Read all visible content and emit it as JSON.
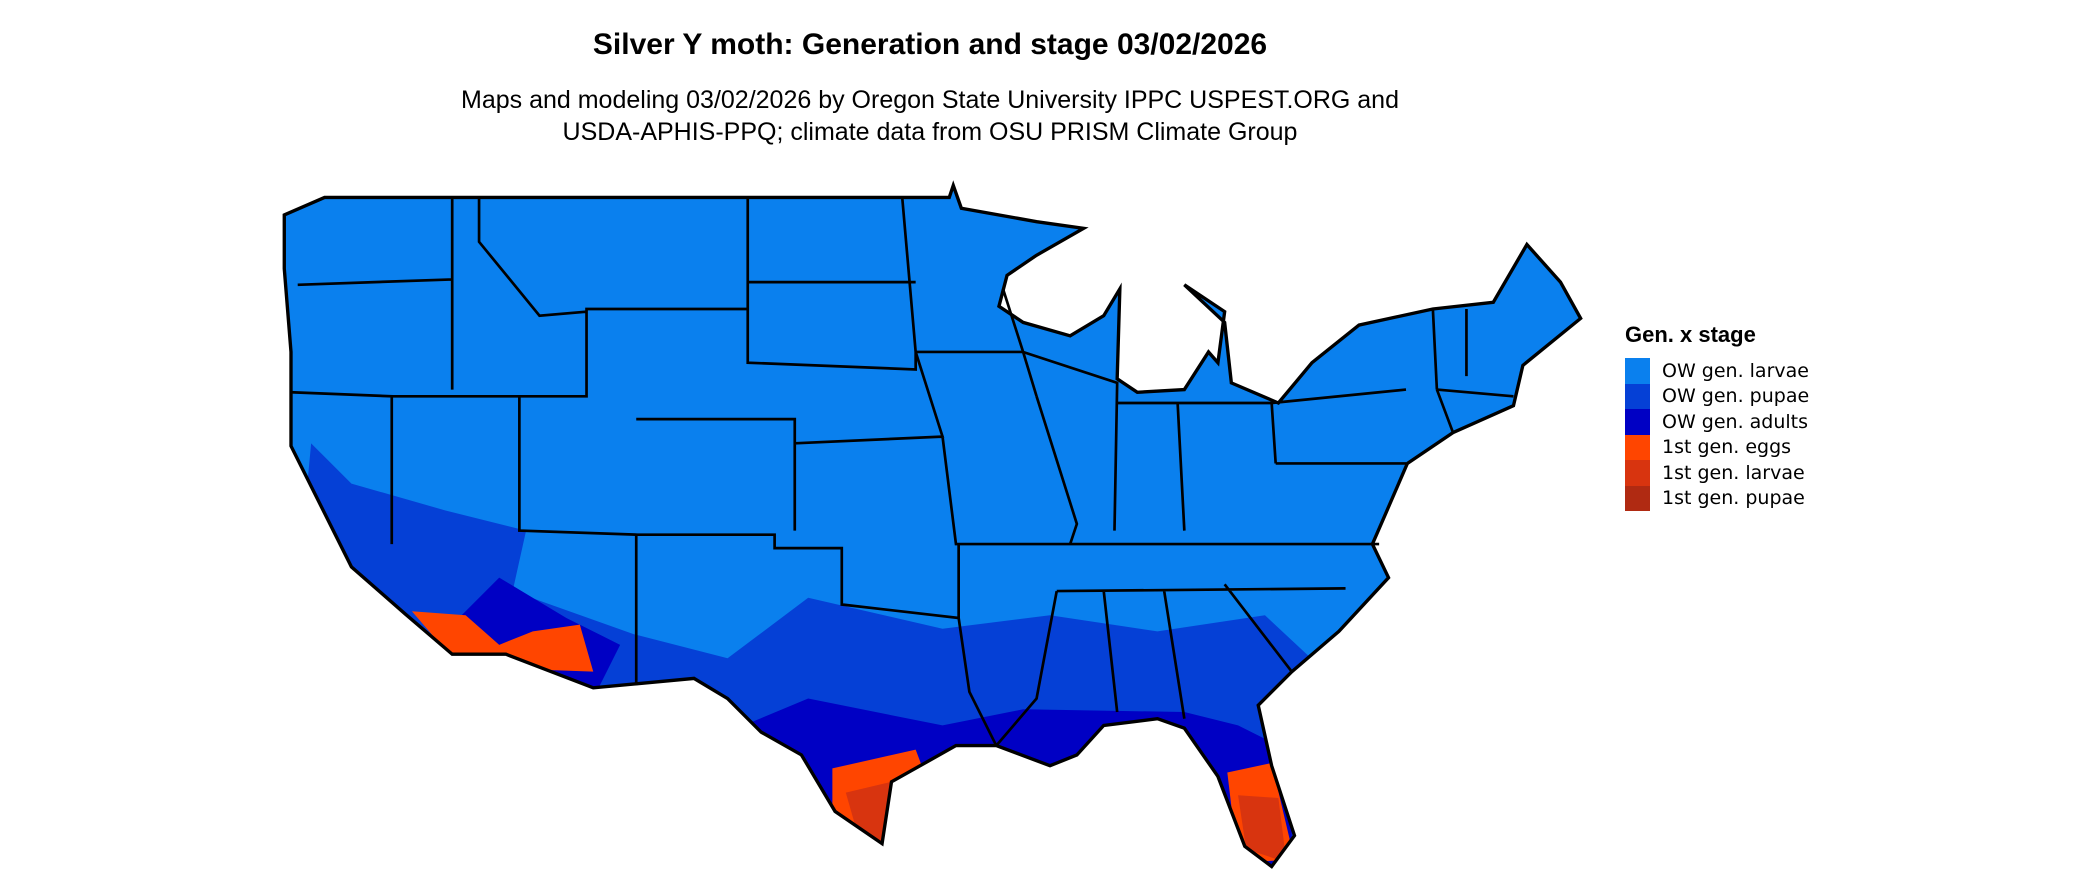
{
  "title": "Silver Y moth: Generation and stage 03/02/2026",
  "subtitle_line1": "Maps and modeling 03/02/2026 by Oregon State University IPPC USPEST.ORG and",
  "subtitle_line2": "USDA-APHIS-PPQ; climate data from OSU PRISM Climate Group",
  "legend": {
    "title": "Gen. x stage",
    "items": [
      {
        "label": "OW gen. larvae",
        "color": "#0A80EE"
      },
      {
        "label": "OW gen. pupae",
        "color": "#0540D6"
      },
      {
        "label": "OW gen. adults",
        "color": "#0000C4"
      },
      {
        "label": "1st gen. eggs",
        "color": "#FF4500"
      },
      {
        "label": "1st gen. larvae",
        "color": "#D8340F"
      },
      {
        "label": "1st gen. pupae",
        "color": "#B02A12"
      }
    ]
  },
  "map": {
    "region": "Contiguous United States",
    "dominant_class": "OW gen. larvae",
    "southern_classes": [
      "OW gen. pupae",
      "OW gen. adults"
    ],
    "first_gen_areas": [
      "southern Texas",
      "southern Florida",
      "southern California",
      "southern Arizona"
    ]
  }
}
